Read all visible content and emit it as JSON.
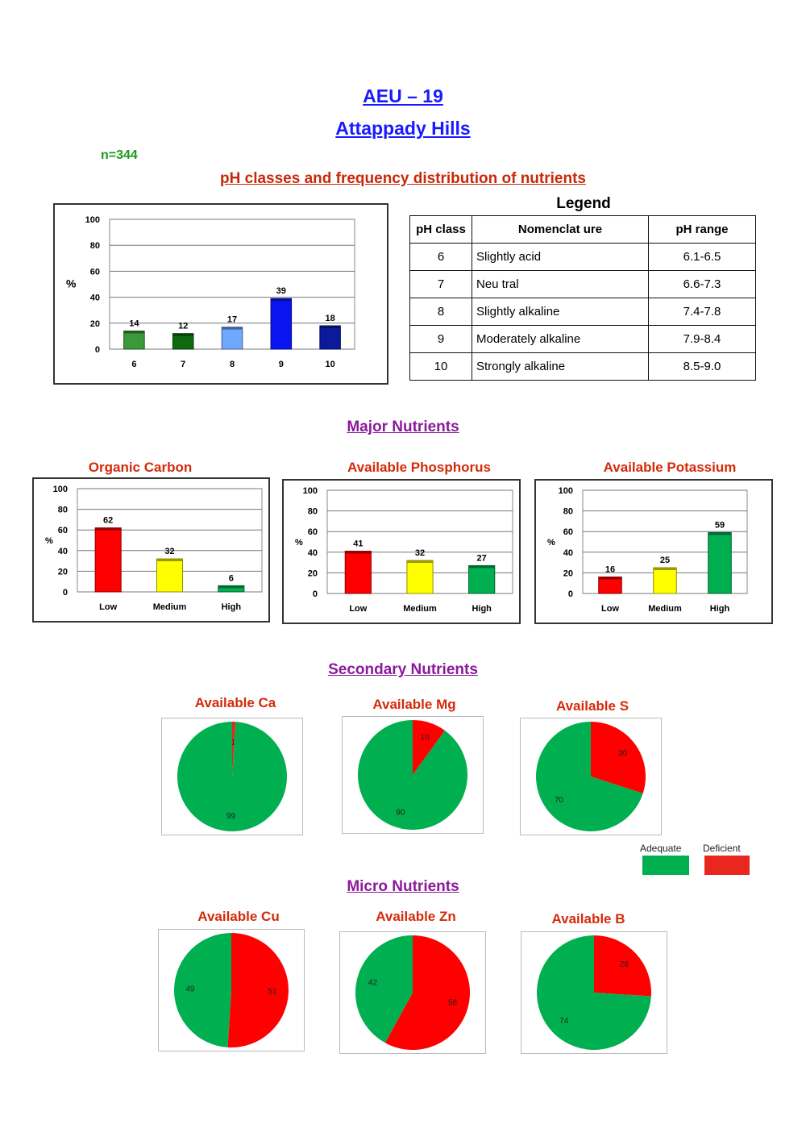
{
  "header": {
    "title": "AEU – 19",
    "subtitle": "Attappady Hills",
    "n_label": "n=344",
    "ph_section_title": "pH classes and frequency distribution of nutrients"
  },
  "legend_table": {
    "title": "Legend",
    "headers": [
      "pH class",
      "Nomenclat ure",
      "pH range"
    ],
    "rows": [
      [
        "6",
        "Slightly acid",
        "6.1-6.5"
      ],
      [
        "7",
        "Neu tral",
        "6.6-7.3"
      ],
      [
        "8",
        "Slightly alkaline",
        "7.4-7.8"
      ],
      [
        "9",
        "Moderately alkaline",
        "7.9-8.4"
      ],
      [
        "10",
        "Strongly alkaline",
        "8.5-9.0"
      ]
    ]
  },
  "sections": {
    "major": "Major Nutrients",
    "secondary": "Secondary Nutrients",
    "micro": "Micro Nutrients"
  },
  "pie_legend": {
    "adequate": "Adequate",
    "deficient": "Deficient",
    "adequate_color": "#00b050",
    "deficient_color": "#e8281e"
  },
  "chart_data": [
    {
      "id": "ph",
      "type": "bar",
      "title": "",
      "ylabel": "%",
      "ylim": [
        0,
        100
      ],
      "yticks": [
        0,
        20,
        40,
        60,
        80,
        100
      ],
      "categories": [
        "6",
        "7",
        "8",
        "9",
        "10"
      ],
      "values": [
        14,
        12,
        17,
        39,
        18
      ],
      "colors": [
        "#3a9a3a",
        "#0f6a0f",
        "#6fa8ff",
        "#0a14f0",
        "#0a1a9a"
      ],
      "grid": true
    },
    {
      "id": "oc",
      "type": "bar",
      "title": "Organic Carbon",
      "ylabel": "%",
      "ylim": [
        0,
        100
      ],
      "yticks": [
        0,
        20,
        40,
        60,
        80,
        100
      ],
      "categories": [
        "Low",
        "Medium",
        "High"
      ],
      "values": [
        62,
        32,
        6
      ],
      "colors": [
        "#ff0000",
        "#ffff00",
        "#00b050"
      ],
      "grid": true
    },
    {
      "id": "p",
      "type": "bar",
      "title": "Available Phosphorus",
      "ylabel": "%",
      "ylim": [
        0,
        100
      ],
      "yticks": [
        0,
        20,
        40,
        60,
        80,
        100
      ],
      "categories": [
        "Low",
        "Medium",
        "High"
      ],
      "values": [
        41,
        32,
        27
      ],
      "colors": [
        "#ff0000",
        "#ffff00",
        "#00b050"
      ],
      "grid": true
    },
    {
      "id": "k",
      "type": "bar",
      "title": "Available Potassium",
      "ylabel": "%",
      "ylim": [
        0,
        100
      ],
      "yticks": [
        0,
        20,
        40,
        60,
        80,
        100
      ],
      "categories": [
        "Low",
        "Medium",
        "High"
      ],
      "values": [
        16,
        25,
        59
      ],
      "colors": [
        "#ff0000",
        "#ffff00",
        "#00b050"
      ],
      "grid": true
    },
    {
      "id": "ca",
      "type": "pie",
      "title": "Available Ca",
      "labels": [
        "Deficient",
        "Adequate"
      ],
      "values": [
        1,
        99
      ],
      "colors": [
        "#e8281e",
        "#00b050"
      ]
    },
    {
      "id": "mg",
      "type": "pie",
      "title": "Available Mg",
      "labels": [
        "Deficient",
        "Adequate"
      ],
      "values": [
        10,
        90
      ],
      "colors": [
        "#ff0000",
        "#00b050"
      ]
    },
    {
      "id": "s",
      "type": "pie",
      "title": "Available S",
      "labels": [
        "Deficient",
        "Adequate"
      ],
      "values": [
        30,
        70
      ],
      "colors": [
        "#ff0000",
        "#00b050"
      ]
    },
    {
      "id": "cu",
      "type": "pie",
      "title": "Available Cu",
      "labels": [
        "Deficient",
        "Adequate"
      ],
      "values": [
        51,
        49
      ],
      "colors": [
        "#ff0000",
        "#00b050"
      ]
    },
    {
      "id": "zn",
      "type": "pie",
      "title": "Available Zn",
      "labels": [
        "Deficient",
        "Adequate"
      ],
      "values": [
        58,
        42
      ],
      "colors": [
        "#ff0000",
        "#00b050"
      ]
    },
    {
      "id": "b",
      "type": "pie",
      "title": "Available B",
      "labels": [
        "Deficient",
        "Adequate"
      ],
      "values": [
        26,
        74
      ],
      "colors": [
        "#ff0000",
        "#00b050"
      ]
    }
  ]
}
